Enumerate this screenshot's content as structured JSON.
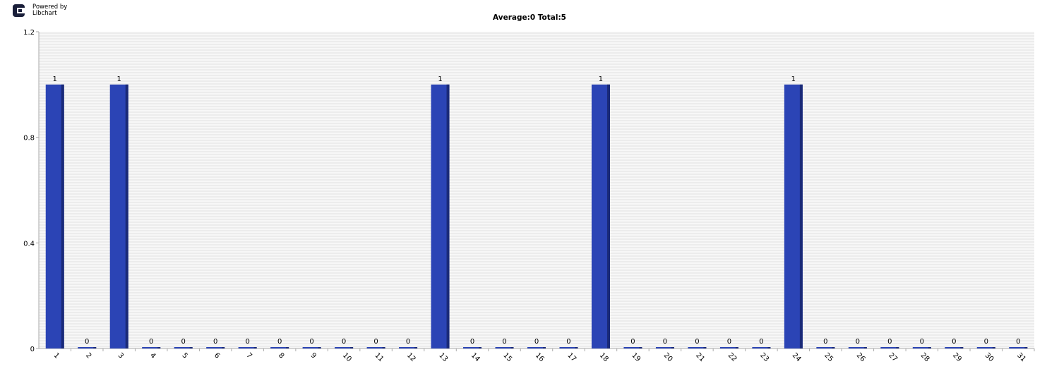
{
  "logo": {
    "line1": "Powered by",
    "line2": "Libchart"
  },
  "chart_data": {
    "type": "bar",
    "title": "Average:0   Total:5",
    "xlabel": "",
    "ylabel": "",
    "ylim": [
      0,
      1.2
    ],
    "yticks": [
      "0",
      "0.4",
      "0.8",
      "1.2"
    ],
    "grid": true,
    "categories": [
      "1",
      "2",
      "3",
      "4",
      "5",
      "6",
      "7",
      "8",
      "9",
      "10",
      "11",
      "12",
      "13",
      "14",
      "15",
      "16",
      "17",
      "18",
      "19",
      "20",
      "21",
      "22",
      "23",
      "24",
      "25",
      "26",
      "27",
      "28",
      "29",
      "30",
      "31"
    ],
    "values": [
      1,
      0,
      1,
      0,
      0,
      0,
      0,
      0,
      0,
      0,
      0,
      0,
      1,
      0,
      0,
      0,
      0,
      1,
      0,
      0,
      0,
      0,
      0,
      1,
      0,
      0,
      0,
      0,
      0,
      0,
      0
    ],
    "colors": {
      "bar": "#2b44b5",
      "bar_side": "#1a2a78",
      "grid": "#e0e0e0",
      "axis": "#aaaaaa"
    }
  }
}
